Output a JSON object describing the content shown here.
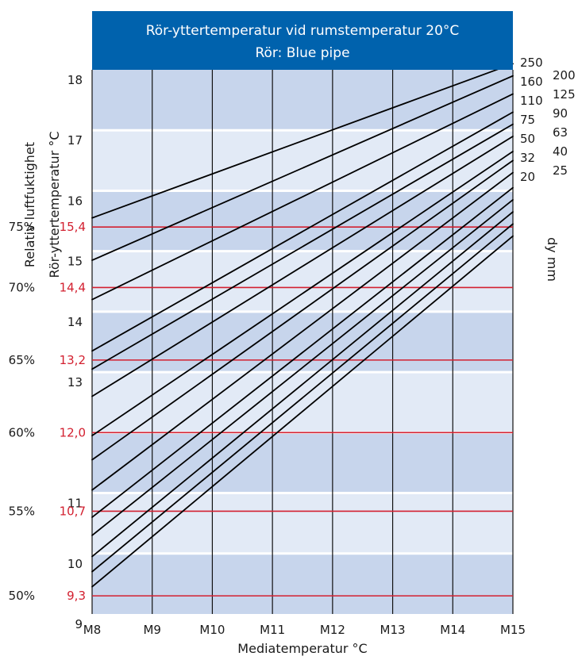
{
  "chart_data": {
    "type": "line",
    "title": "Rör-yttertemperatur vid rumstemperatur 20°C",
    "subtitle": "Rör: Blue pipe",
    "xlabel": "Mediatemperatur °C",
    "ylabel": "Rör-yttertemperatur °C",
    "rh_label": "Relativ luftfuktighet",
    "dim_label": "dy mm",
    "x_ticks": [
      "M8",
      "M9",
      "M10",
      "M11",
      "M12",
      "M13",
      "M14",
      "M15"
    ],
    "xlim": [
      8,
      15
    ],
    "ylim": [
      9,
      18
    ],
    "y_ticks": [
      "9",
      "10",
      "11",
      "13",
      "14",
      "15",
      "16",
      "17",
      "18"
    ],
    "y_tick_values": [
      9,
      10,
      11,
      13,
      14,
      15,
      16,
      17,
      18
    ],
    "grid": "vertical lines at each x tick; alternating horizontal bands per 1 °C",
    "colors": {
      "header": "#0062ad",
      "band_dark": "#c7d5ec",
      "band_light": "#e2eaf6",
      "reference": "#d32030",
      "line": "#000000"
    },
    "reference_lines": [
      {
        "rh": "75%",
        "label": "15,4",
        "y": 15.4
      },
      {
        "rh": "70%",
        "label": "14,4",
        "y": 14.4
      },
      {
        "rh": "65%",
        "label": "13,2",
        "y": 13.2
      },
      {
        "rh": "60%",
        "label": "12,0",
        "y": 12.0
      },
      {
        "rh": "55%",
        "label": "10,7",
        "y": 10.7
      },
      {
        "rh": "50%",
        "label": "9,3",
        "y": 9.3
      }
    ],
    "series": [
      {
        "name": "250",
        "x": [
          8,
          15
        ],
        "y": [
          15.55,
          18.1
        ]
      },
      {
        "name": "200",
        "x": [
          8,
          15
        ],
        "y": [
          14.85,
          17.9
        ]
      },
      {
        "name": "160",
        "x": [
          8,
          15
        ],
        "y": [
          14.2,
          17.6
        ]
      },
      {
        "name": "125",
        "x": [
          8,
          15
        ],
        "y": [
          13.35,
          17.3
        ]
      },
      {
        "name": "110",
        "x": [
          8,
          15
        ],
        "y": [
          13.05,
          17.1
        ]
      },
      {
        "name": "90",
        "x": [
          8,
          15
        ],
        "y": [
          12.6,
          16.9
        ]
      },
      {
        "name": "75",
        "x": [
          8,
          15
        ],
        "y": [
          11.95,
          16.65
        ]
      },
      {
        "name": "63",
        "x": [
          8,
          15
        ],
        "y": [
          11.55,
          16.5
        ]
      },
      {
        "name": "50",
        "x": [
          8,
          15
        ],
        "y": [
          11.05,
          16.3
        ]
      },
      {
        "name": "40",
        "x": [
          8,
          15
        ],
        "y": [
          10.6,
          16.05
        ]
      },
      {
        "name": "32",
        "x": [
          8,
          15
        ],
        "y": [
          10.3,
          15.85
        ]
      },
      {
        "name": "25",
        "x": [
          8,
          15
        ],
        "y": [
          9.95,
          15.65
        ]
      },
      {
        "name": "20",
        "x": [
          8,
          15
        ],
        "y": [
          9.7,
          15.45
        ]
      },
      {
        "name": "",
        "x": [
          8,
          15
        ],
        "y": [
          9.45,
          15.25
        ]
      }
    ],
    "dimension_labels": {
      "column_1": [
        "250",
        "160",
        "110",
        "75",
        "50",
        "32",
        "20"
      ],
      "column_2": [
        "200",
        "125",
        "90",
        "63",
        "40",
        "25"
      ]
    }
  }
}
